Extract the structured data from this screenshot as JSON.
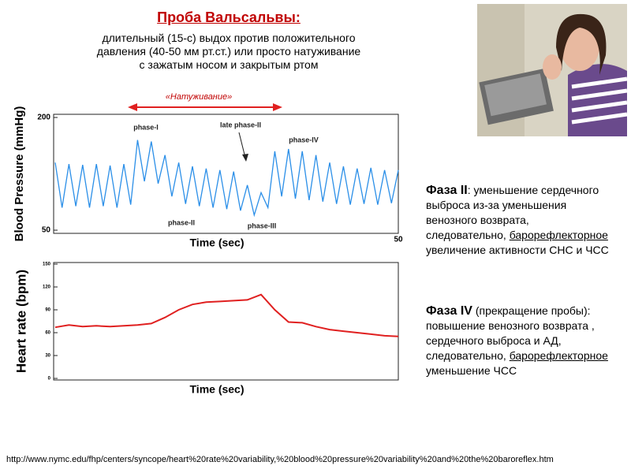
{
  "title": "Проба Вальсальвы:",
  "subtitle": [
    "длительный (15-с) выдох против положительного",
    "давления  (40-50 мм рт.ст.) или просто натуживание",
    "с зажатым носом и закрытым ртом"
  ],
  "phase2": {
    "heading": "Фаза II",
    "text1": ": уменьшение сердечного выброса из-за уменьшения венозного возврата, следовательно,",
    "underlined": "барорефлекторное",
    "text2": "увеличение активности СНС и ЧСС"
  },
  "phase4": {
    "heading": "Фаза IV",
    "text1": " (прекращение пробы): повышение венозного возврата , сердечного выброса и АД, следовательно,",
    "underlined": "барорефлекторное",
    "text2": "уменьшение ЧСС"
  },
  "url": "http://www.nymc.edu/fhp/centers/syncope/heart%20rate%20variability,%20blood%20pressure%20variability%20and%20the%20baroreflex.htm",
  "chart_data": [
    {
      "type": "line",
      "ylabel": "Blood Pressure (mmHg)",
      "xlabel": "Time (sec)",
      "annotation": "«Натуживание»",
      "phase_labels": [
        "phase-I",
        "late phase-II",
        "phase-IV",
        "phase-II",
        "phase-III"
      ],
      "xlim": [
        0,
        50
      ],
      "xticks": [
        50
      ],
      "ylim": [
        50,
        200
      ],
      "yticks": [
        50,
        200
      ],
      "x": [
        0,
        1,
        2,
        3,
        4,
        5,
        6,
        7,
        8,
        9,
        10,
        11,
        12,
        13,
        14,
        15,
        16,
        17,
        18,
        19,
        20,
        21,
        22,
        23,
        24,
        25,
        26,
        27,
        28,
        29,
        30,
        31,
        32,
        33,
        34,
        35,
        36,
        37,
        38,
        39,
        40,
        41,
        42,
        43,
        44,
        45,
        46,
        47,
        48,
        49,
        50
      ],
      "series": [
        {
          "name": "Blood Pressure",
          "color": "#2b8fe8",
          "values": [
            140,
            80,
            138,
            82,
            137,
            80,
            138,
            82,
            136,
            80,
            138,
            84,
            170,
            115,
            168,
            112,
            150,
            95,
            140,
            85,
            135,
            82,
            132,
            80,
            130,
            78,
            128,
            76,
            110,
            70,
            100,
            80,
            155,
            95,
            158,
            92,
            155,
            90,
            150,
            88,
            140,
            85,
            135,
            84,
            132,
            85,
            133,
            84,
            130,
            86,
            130
          ]
        }
      ]
    },
    {
      "type": "line",
      "ylabel": "Heart rate (bpm)",
      "xlabel": "Time (sec)",
      "xlim": [
        0,
        50
      ],
      "ylim": [
        0,
        150
      ],
      "yticks": [
        0,
        30,
        60,
        90,
        120,
        150
      ],
      "x": [
        0,
        2,
        4,
        6,
        8,
        10,
        12,
        14,
        16,
        18,
        20,
        22,
        24,
        26,
        28,
        30,
        32,
        34,
        36,
        38,
        40,
        42,
        44,
        46,
        48,
        50
      ],
      "series": [
        {
          "name": "Heart rate",
          "color": "#e02020",
          "values": [
            67,
            70,
            68,
            69,
            68,
            69,
            70,
            72,
            80,
            90,
            97,
            100,
            101,
            102,
            103,
            110,
            90,
            74,
            73,
            68,
            64,
            62,
            60,
            58,
            56,
            55
          ]
        }
      ]
    }
  ]
}
